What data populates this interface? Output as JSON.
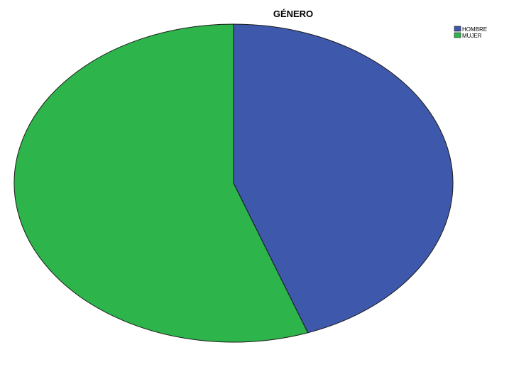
{
  "chart_data": {
    "type": "pie",
    "title": "GÉNERO",
    "categories": [
      "HOMBRE",
      "MUJER"
    ],
    "values": [
      44.5,
      55.5
    ],
    "colors": [
      "#3e58ac",
      "#2db44a"
    ],
    "legend_position": "top-right"
  }
}
